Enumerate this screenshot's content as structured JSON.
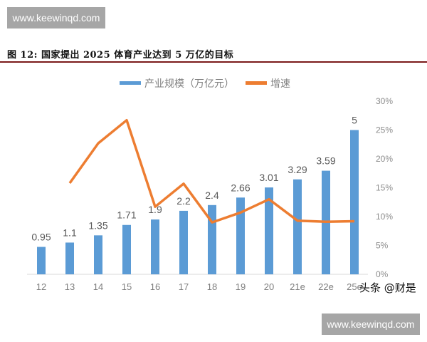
{
  "watermarks": {
    "top": "www.keewinqd.com",
    "bottom": "www.keewinqd.com"
  },
  "figure": {
    "title": "图 12: 国家提出 2025 体育产业达到 5 万亿的目标"
  },
  "credit": "头条 @财是",
  "colors": {
    "bar": "#5B9BD5",
    "line": "#ED7D31",
    "title_rule": "#7B1A1A",
    "axis": "#d9d9d9"
  },
  "chart_data": {
    "type": "bar+line",
    "title": "图 12: 国家提出 2025 体育产业达到 5 万亿的目标",
    "categories": [
      "12",
      "13",
      "14",
      "15",
      "16",
      "17",
      "18",
      "19",
      "20",
      "21e",
      "22e",
      "25e"
    ],
    "series": [
      {
        "name": "产业规模（万亿元）",
        "type": "bar",
        "axis": "left",
        "values": [
          0.95,
          1.1,
          1.35,
          1.71,
          1.9,
          2.2,
          2.4,
          2.66,
          3.01,
          3.29,
          3.59,
          5
        ],
        "labels": [
          "0.95",
          "1.1",
          "1.35",
          "1.71",
          "1.9",
          "2.2",
          "2.4",
          "2.66",
          "3.01",
          "3.29",
          "3.59",
          "5"
        ]
      },
      {
        "name": "增速",
        "type": "line",
        "axis": "right",
        "values": [
          null,
          15.8,
          22.7,
          26.7,
          11.7,
          15.7,
          9.0,
          10.7,
          13.0,
          9.3,
          9.1,
          9.2
        ]
      }
    ],
    "xlabel": "",
    "ylabel_left": "",
    "ylabel_right": "",
    "ylim_left": [
      0,
      6
    ],
    "ylim_right": [
      0,
      30
    ],
    "right_ticks": [
      "0%",
      "5%",
      "10%",
      "15%",
      "20%",
      "25%",
      "30%"
    ],
    "legend_position": "top",
    "grid": false
  }
}
